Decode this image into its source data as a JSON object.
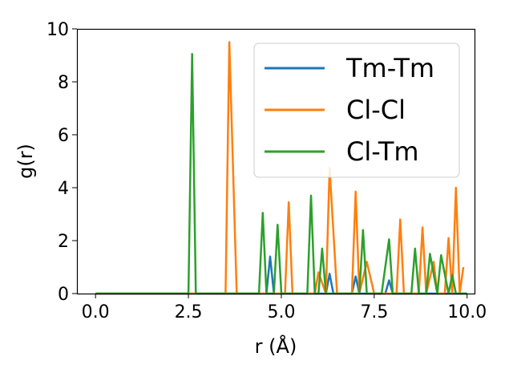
{
  "chart_data": {
    "type": "line",
    "title": "",
    "xlabel": "r (Å)",
    "ylabel": "g(r)",
    "xlim": [
      -0.5,
      10.2
    ],
    "ylim": [
      0,
      10
    ],
    "xticks": [
      "0.0",
      "2.5",
      "5.0",
      "7.5",
      "10.0"
    ],
    "yticks": [
      "0",
      "2",
      "4",
      "6",
      "8",
      "10"
    ],
    "grid": false,
    "legend_position": "top-right",
    "series": [
      {
        "name": "Tm-Tm",
        "color": "#1f77b4",
        "x": [
          0.0,
          4.6,
          4.7,
          4.8,
          6.2,
          6.3,
          6.4,
          6.9,
          7.0,
          7.1,
          7.8,
          7.9,
          8.0,
          10.0
        ],
        "y": [
          0,
          0,
          1.4,
          0,
          0,
          0.75,
          0,
          0,
          0.65,
          0,
          0,
          0.5,
          0,
          0
        ]
      },
      {
        "name": "Cl-Cl",
        "color": "#ff7f0e",
        "x": [
          0.0,
          3.5,
          3.6,
          3.8,
          5.1,
          5.2,
          5.3,
          5.9,
          6.0,
          6.2,
          6.3,
          6.5,
          6.9,
          7.0,
          7.1,
          7.3,
          7.5,
          8.1,
          8.2,
          8.3,
          8.7,
          8.8,
          8.9,
          9.1,
          9.2,
          9.4,
          9.5,
          9.6,
          9.7,
          9.8,
          9.9
        ],
        "y": [
          0,
          0,
          9.5,
          0,
          0,
          3.45,
          0,
          0,
          0.8,
          0,
          4.75,
          0,
          0,
          3.85,
          0,
          1.2,
          0,
          0,
          2.8,
          0,
          0,
          2.5,
          0,
          1.2,
          0,
          0,
          2.1,
          0,
          4.0,
          0,
          1.0
        ]
      },
      {
        "name": "Cl-Tm",
        "color": "#2ca02c",
        "x": [
          0.0,
          2.5,
          2.6,
          2.7,
          4.4,
          4.5,
          4.6,
          4.8,
          4.9,
          5.0,
          5.7,
          5.8,
          5.9,
          6.0,
          6.1,
          6.2,
          7.1,
          7.2,
          7.3,
          7.7,
          7.9,
          8.0,
          8.5,
          8.6,
          8.7,
          8.9,
          9.0,
          9.2,
          9.3,
          9.5,
          9.6,
          9.7,
          10.0
        ],
        "y": [
          0,
          0,
          9.05,
          0,
          0,
          3.05,
          0,
          0,
          2.6,
          0,
          0,
          3.7,
          0,
          0,
          1.7,
          0,
          0,
          2.4,
          0,
          0,
          2.05,
          0,
          0,
          1.7,
          0,
          0,
          1.5,
          0,
          1.45,
          0,
          0.7,
          0,
          0
        ]
      }
    ]
  }
}
